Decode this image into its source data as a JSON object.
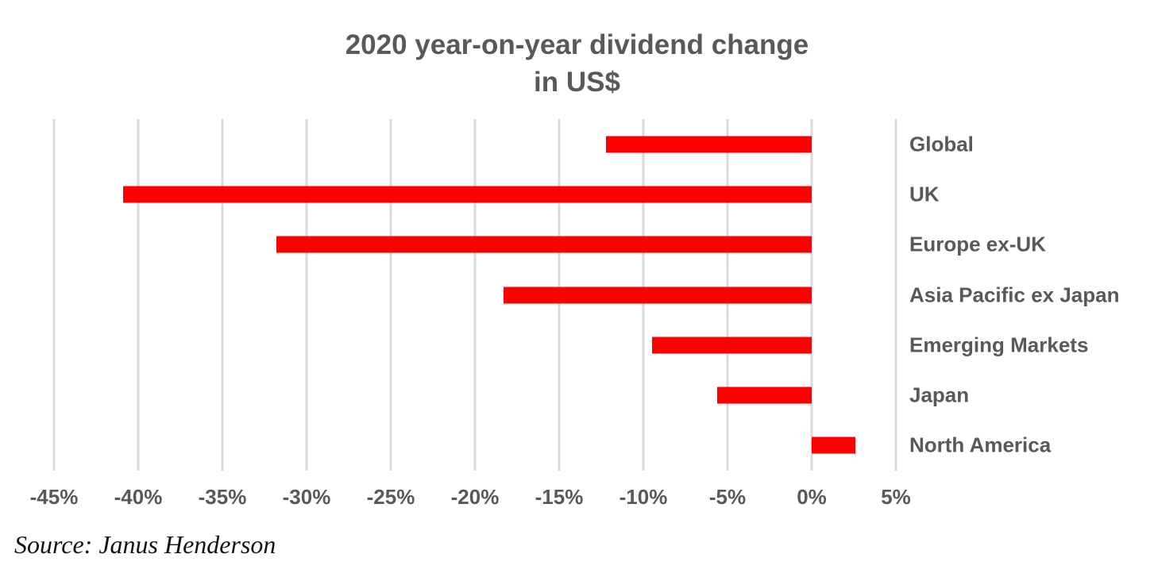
{
  "chart": {
    "title_line1": "2020 year-on-year dividend change",
    "title_line2": "in US$",
    "source": "Source: Janus Henderson"
  },
  "chart_data": {
    "type": "bar",
    "orientation": "horizontal",
    "title": "2020 year-on-year dividend change in US$",
    "xlabel": "",
    "ylabel": "",
    "unit": "%",
    "categories": [
      "Global",
      "UK",
      "Europe ex-UK",
      "Asia Pacific ex Japan",
      "Emerging Markets",
      "Japan",
      "North America"
    ],
    "values": [
      -12.2,
      -40.9,
      -31.8,
      -18.3,
      -9.5,
      -5.6,
      2.6
    ],
    "xlim": [
      -45,
      5
    ],
    "x_ticks": [
      {
        "label": "-45%",
        "value": -45
      },
      {
        "label": "-40%",
        "value": -40
      },
      {
        "label": "-35%",
        "value": -35
      },
      {
        "label": "-30%",
        "value": -30
      },
      {
        "label": "-25%",
        "value": -25
      },
      {
        "label": "-20%",
        "value": -20
      },
      {
        "label": "-15%",
        "value": -15
      },
      {
        "label": "-10%",
        "value": -10
      },
      {
        "label": "-5%",
        "value": -5
      },
      {
        "label": "0%",
        "value": 0
      },
      {
        "label": "5%",
        "value": 5
      }
    ],
    "grid": "vertical",
    "legend": "none",
    "source": "Source: Janus Henderson",
    "colors": {
      "bar": "#fe0000",
      "text": "#595959",
      "gridline": "#d9d9d9",
      "source_text": "#141414",
      "background": "#ffffff"
    }
  }
}
